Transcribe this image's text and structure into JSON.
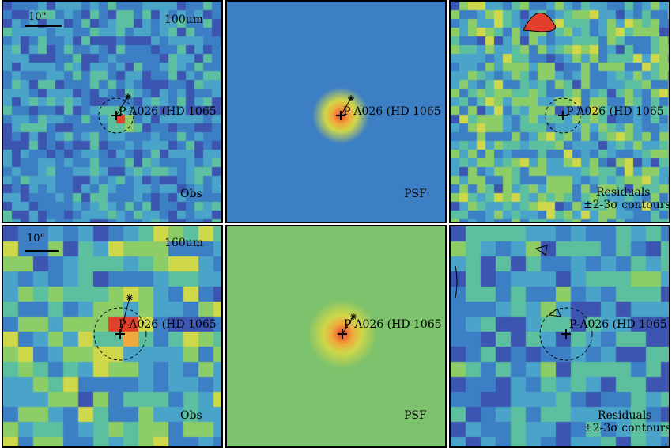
{
  "panels": [
    {
      "id": "p100-obs",
      "band": "100um",
      "source": "P-A026 (HD 1065",
      "scale": "10\"",
      "label": "Obs"
    },
    {
      "id": "p100-psf",
      "source": "P-A026 (HD 1065",
      "label": "PSF"
    },
    {
      "id": "p100-res",
      "source": "P-A026 (HD 1065",
      "label": "Residuals",
      "sublabel": "±2-3σ contours"
    },
    {
      "id": "p160-obs",
      "band": "160um",
      "source": "P-A026 (HD 1065",
      "scale": "10\"",
      "label": "Obs"
    },
    {
      "id": "p160-psf",
      "source": "P-A026 (HD 1065",
      "label": "PSF"
    },
    {
      "id": "p160-res",
      "source": "P-A026 (HD 1065",
      "label": "Residuals",
      "sublabel": "±2-3σ contours"
    }
  ],
  "colors": {
    "psf100_bg": "#3d7fc4",
    "psf160_bg": "#7dc26c",
    "hot": "#e2402c",
    "warm": "#f2a93b",
    "yellow": "#e8d84a"
  }
}
